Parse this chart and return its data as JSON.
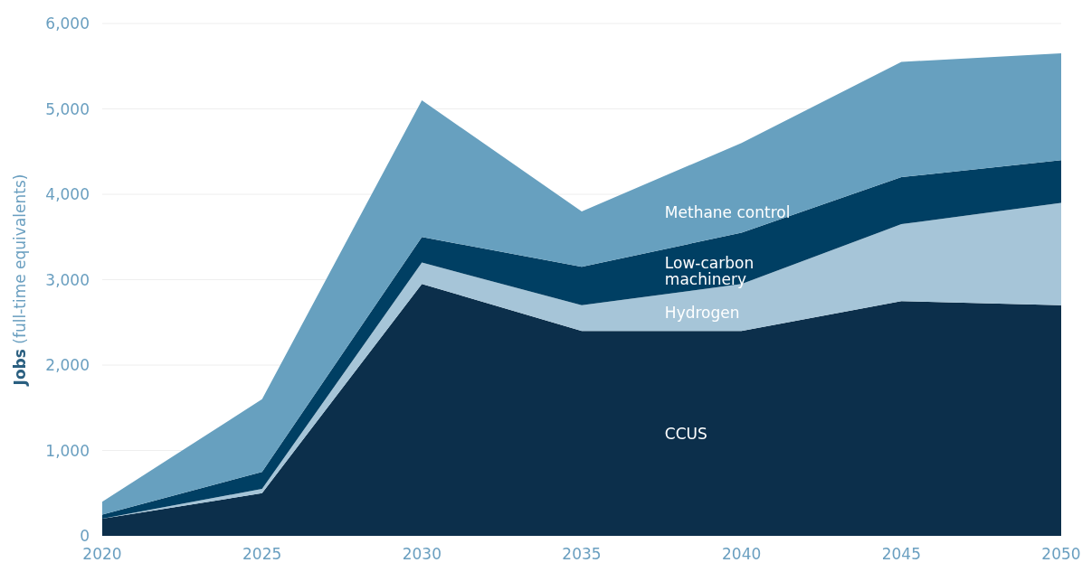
{
  "chart_data": {
    "type": "area",
    "stacked": true,
    "ylabel": "Jobs (full-time equivalents)",
    "x": [
      2020,
      2025,
      2030,
      2035,
      2040,
      2045,
      2050
    ],
    "xlim": [
      2020,
      2050
    ],
    "xticks": [
      2020,
      2025,
      2030,
      2035,
      2040,
      2045,
      2050
    ],
    "ylim": [
      0,
      6000
    ],
    "yticks": [
      0,
      {
        "value": 1000,
        "label": "1,000"
      },
      {
        "value": 2000,
        "label": "2,000"
      },
      {
        "value": 3000,
        "label": "3,000"
      },
      {
        "value": 4000,
        "label": "4,000"
      },
      {
        "value": 5000,
        "label": "5,000"
      },
      {
        "value": 6000,
        "label": "6,000"
      }
    ],
    "grid": "y",
    "series": [
      {
        "name": "CCUS",
        "color": "#0c2f4b",
        "values": [
          200,
          500,
          2950,
          2400,
          2400,
          2750,
          2700
        ]
      },
      {
        "name": "Hydrogen",
        "color": "#a6c5d8",
        "values": [
          0,
          50,
          250,
          300,
          550,
          900,
          1200
        ]
      },
      {
        "name": "Low-carbon machinery",
        "color": "#003f63",
        "values": [
          50,
          200,
          300,
          450,
          600,
          550,
          500
        ]
      },
      {
        "name": "Methane control",
        "color": "#67a0bf",
        "values": [
          150,
          850,
          1600,
          650,
          1050,
          1350,
          1250
        ]
      }
    ]
  }
}
